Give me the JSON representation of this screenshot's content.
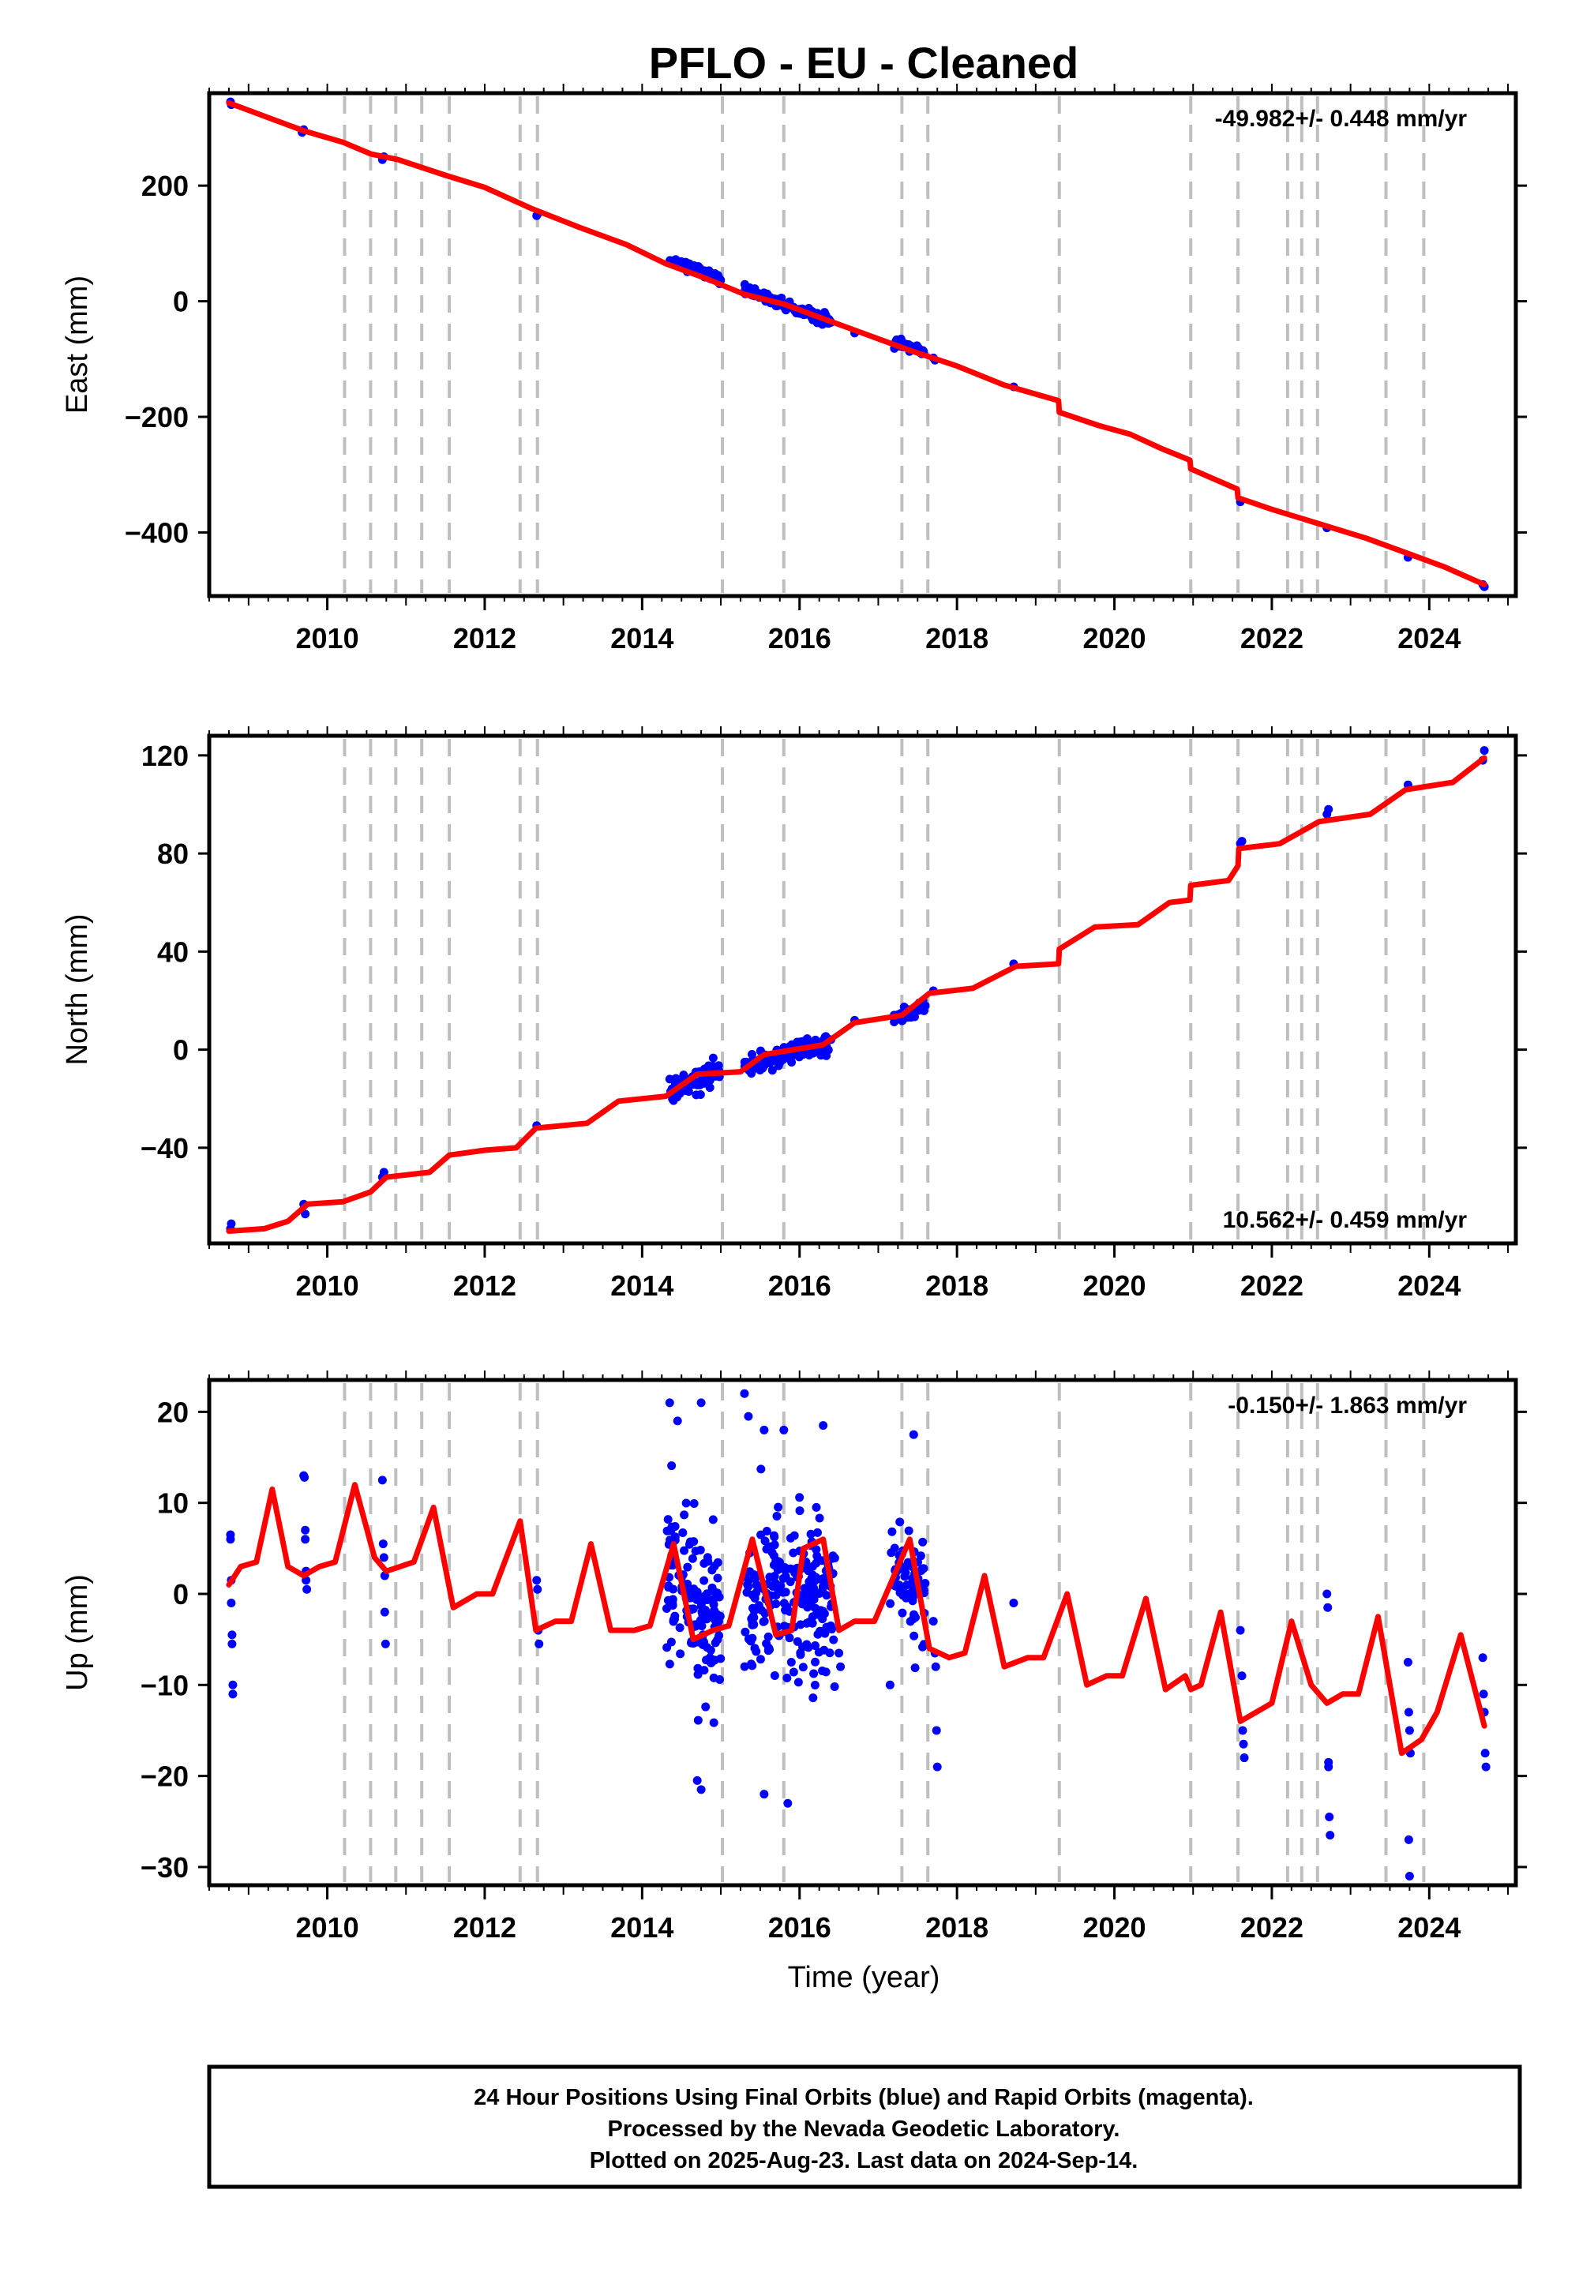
{
  "title": "PFLO  - EU - Cleaned",
  "x_axis_title": "Time (year)",
  "footer": {
    "line1": "24 Hour Positions Using Final Orbits (blue) and Rapid Orbits (magenta).",
    "line2": "Processed by the Nevada Geodetic Laboratory.",
    "line3": "Plotted on 2025-Aug-23. Last data on 2024-Sep-14."
  },
  "colors": {
    "data_points": "#0000ff",
    "model_line": "#ff0000",
    "event_lines": "#bfbfbf",
    "frame": "#000000"
  },
  "chart_data": [
    {
      "type": "scatter",
      "name": "east",
      "ylabel": "East (mm)",
      "xlim": [
        2008.5,
        2025.1
      ],
      "ylim": [
        -510,
        360
      ],
      "x_ticks": [
        2010,
        2012,
        2014,
        2016,
        2018,
        2020,
        2022,
        2024
      ],
      "y_ticks": [
        200,
        0,
        -200,
        -400
      ],
      "y_tick_labels": [
        "200",
        "0",
        "−200",
        "−400"
      ],
      "rate_label": "-49.982+/- 0.448 mm/yr",
      "rate_label_position": "top-right",
      "event_lines": [
        2010.22,
        2010.55,
        2010.87,
        2011.2,
        2011.55,
        2012.45,
        2012.67,
        2015.02,
        2015.8,
        2017.3,
        2017.63,
        2019.3,
        2020.97,
        2021.57,
        2022.2,
        2022.38,
        2022.58,
        2023.45,
        2023.93
      ],
      "model_points": [
        [
          2008.75,
          343
        ],
        [
          2009.3,
          315
        ],
        [
          2009.7,
          295
        ],
        [
          2010.2,
          275
        ],
        [
          2010.55,
          255
        ],
        [
          2010.9,
          245
        ],
        [
          2011.5,
          218
        ],
        [
          2012.0,
          197
        ],
        [
          2012.6,
          160
        ],
        [
          2013.2,
          128
        ],
        [
          2013.8,
          98
        ],
        [
          2014.3,
          65
        ],
        [
          2014.8,
          40
        ],
        [
          2015.3,
          12
        ],
        [
          2015.8,
          -5
        ],
        [
          2016.3,
          -30
        ],
        [
          2016.8,
          -55
        ],
        [
          2017.4,
          -85
        ],
        [
          2018.0,
          -112
        ],
        [
          2018.6,
          -145
        ],
        [
          2019.29,
          -172
        ],
        [
          2019.3,
          -192
        ],
        [
          2019.8,
          -215
        ],
        [
          2020.2,
          -230
        ],
        [
          2020.6,
          -255
        ],
        [
          2020.96,
          -275
        ],
        [
          2020.97,
          -290
        ],
        [
          2021.56,
          -325
        ],
        [
          2021.57,
          -340
        ],
        [
          2022.0,
          -360
        ],
        [
          2022.6,
          -385
        ],
        [
          2023.2,
          -410
        ],
        [
          2023.8,
          -440
        ],
        [
          2024.2,
          -460
        ],
        [
          2024.7,
          -490
        ]
      ],
      "clusters": [
        {
          "x_start": 2014.35,
          "x_end": 2015.0,
          "y_start": 72,
          "y_end": 38,
          "scatter": 7,
          "count": 85
        },
        {
          "x_start": 2015.3,
          "x_end": 2016.4,
          "y_start": 20,
          "y_end": -36,
          "scatter": 8,
          "count": 130
        },
        {
          "x_start": 2017.2,
          "x_end": 2017.6,
          "y_start": -70,
          "y_end": -88,
          "scatter": 6,
          "count": 40
        }
      ],
      "points": [
        [
          2008.77,
          345
        ],
        [
          2008.78,
          340
        ],
        [
          2009.68,
          292
        ],
        [
          2009.7,
          297
        ],
        [
          2010.7,
          245
        ],
        [
          2010.72,
          250
        ],
        [
          2012.66,
          148
        ],
        [
          2012.68,
          152
        ],
        [
          2016.7,
          -55
        ],
        [
          2017.7,
          -98
        ],
        [
          2017.72,
          -102
        ],
        [
          2018.72,
          -148
        ],
        [
          2021.6,
          -347
        ],
        [
          2022.7,
          -392
        ],
        [
          2023.73,
          -443
        ],
        [
          2024.68,
          -490
        ],
        [
          2024.7,
          -494
        ]
      ]
    },
    {
      "type": "scatter",
      "name": "north",
      "ylabel": "North (mm)",
      "xlim": [
        2008.5,
        2025.1
      ],
      "ylim": [
        -79,
        128
      ],
      "x_ticks": [
        2010,
        2012,
        2014,
        2016,
        2018,
        2020,
        2022,
        2024
      ],
      "y_ticks": [
        120,
        80,
        40,
        0,
        -40
      ],
      "y_tick_labels": [
        "120",
        "80",
        "40",
        "0",
        "−40"
      ],
      "rate_label": "10.562+/- 0.459 mm/yr",
      "rate_label_position": "bottom-right",
      "event_lines": [
        2010.22,
        2010.55,
        2010.87,
        2011.2,
        2011.55,
        2012.45,
        2012.67,
        2015.02,
        2015.8,
        2017.3,
        2017.63,
        2019.3,
        2020.97,
        2021.57,
        2022.2,
        2022.38,
        2022.58,
        2023.45,
        2023.93
      ],
      "model_points": [
        [
          2008.75,
          -74
        ],
        [
          2009.2,
          -73
        ],
        [
          2009.5,
          -70
        ],
        [
          2009.75,
          -63
        ],
        [
          2010.2,
          -62
        ],
        [
          2010.55,
          -58
        ],
        [
          2010.75,
          -52
        ],
        [
          2011.3,
          -50
        ],
        [
          2011.55,
          -43
        ],
        [
          2012.0,
          -41
        ],
        [
          2012.4,
          -40
        ],
        [
          2012.65,
          -32
        ],
        [
          2013.3,
          -30
        ],
        [
          2013.7,
          -21
        ],
        [
          2014.3,
          -19
        ],
        [
          2014.7,
          -10
        ],
        [
          2015.25,
          -9
        ],
        [
          2015.55,
          -2
        ],
        [
          2016.3,
          2
        ],
        [
          2016.7,
          11
        ],
        [
          2017.3,
          14
        ],
        [
          2017.65,
          23
        ],
        [
          2018.2,
          25
        ],
        [
          2018.75,
          34
        ],
        [
          2019.29,
          35
        ],
        [
          2019.3,
          41
        ],
        [
          2019.75,
          50
        ],
        [
          2020.3,
          51
        ],
        [
          2020.7,
          60
        ],
        [
          2020.96,
          61
        ],
        [
          2020.97,
          67
        ],
        [
          2021.45,
          69
        ],
        [
          2021.57,
          75
        ],
        [
          2021.58,
          82
        ],
        [
          2022.1,
          84
        ],
        [
          2022.6,
          93
        ],
        [
          2023.25,
          96
        ],
        [
          2023.7,
          106
        ],
        [
          2024.3,
          109
        ],
        [
          2024.7,
          119
        ]
      ],
      "clusters": [
        {
          "x_start": 2014.35,
          "x_end": 2015.0,
          "y_start": -18,
          "y_end": -8,
          "scatter": 4,
          "count": 85
        },
        {
          "x_start": 2015.3,
          "x_end": 2016.4,
          "y_start": -7,
          "y_end": 3,
          "scatter": 3.5,
          "count": 130
        },
        {
          "x_start": 2017.2,
          "x_end": 2017.6,
          "y_start": 12,
          "y_end": 18,
          "scatter": 3,
          "count": 40
        }
      ],
      "points": [
        [
          2008.77,
          -73
        ],
        [
          2008.78,
          -71
        ],
        [
          2009.7,
          -63
        ],
        [
          2009.72,
          -67
        ],
        [
          2010.7,
          -52
        ],
        [
          2010.72,
          -50
        ],
        [
          2012.66,
          -31
        ],
        [
          2016.7,
          12
        ],
        [
          2017.7,
          24
        ],
        [
          2018.72,
          35
        ],
        [
          2021.6,
          84
        ],
        [
          2021.62,
          85
        ],
        [
          2022.7,
          96
        ],
        [
          2022.72,
          98
        ],
        [
          2023.73,
          108
        ],
        [
          2024.68,
          118
        ],
        [
          2024.7,
          122
        ]
      ]
    },
    {
      "type": "scatter",
      "name": "up",
      "ylabel": "Up (mm)",
      "xlabel": "Time (year)",
      "xlim": [
        2008.5,
        2025.1
      ],
      "ylim": [
        -32,
        23.5
      ],
      "x_ticks": [
        2010,
        2012,
        2014,
        2016,
        2018,
        2020,
        2022,
        2024
      ],
      "y_ticks": [
        20,
        10,
        0,
        -10,
        -20,
        -30
      ],
      "y_tick_labels": [
        "20",
        "10",
        "0",
        "−10",
        "−20",
        "−30"
      ],
      "rate_label": "-0.150+/- 1.863 mm/yr",
      "rate_label_position": "top-right",
      "event_lines": [
        2010.22,
        2010.55,
        2010.87,
        2011.2,
        2011.55,
        2012.45,
        2012.67,
        2015.02,
        2015.8,
        2017.3,
        2017.63,
        2019.3,
        2020.97,
        2021.57,
        2022.2,
        2022.38,
        2022.58,
        2023.45,
        2023.93
      ],
      "model_points": [
        [
          2008.75,
          1
        ],
        [
          2008.9,
          3
        ],
        [
          2009.1,
          3.5
        ],
        [
          2009.3,
          11.5
        ],
        [
          2009.5,
          3
        ],
        [
          2009.7,
          2
        ],
        [
          2009.9,
          3
        ],
        [
          2010.1,
          3.5
        ],
        [
          2010.35,
          12
        ],
        [
          2010.6,
          4
        ],
        [
          2010.75,
          2.5
        ],
        [
          2011.1,
          3.5
        ],
        [
          2011.35,
          9.5
        ],
        [
          2011.6,
          -1.5
        ],
        [
          2011.9,
          0
        ],
        [
          2012.1,
          0
        ],
        [
          2012.45,
          8
        ],
        [
          2012.65,
          -4
        ],
        [
          2012.9,
          -3
        ],
        [
          2013.1,
          -3
        ],
        [
          2013.35,
          5.5
        ],
        [
          2013.6,
          -4
        ],
        [
          2013.9,
          -4
        ],
        [
          2014.1,
          -3.5
        ],
        [
          2014.4,
          5.5
        ],
        [
          2014.65,
          -5
        ],
        [
          2014.9,
          -4
        ],
        [
          2015.1,
          -3.5
        ],
        [
          2015.4,
          6
        ],
        [
          2015.7,
          -4.5
        ],
        [
          2015.9,
          -4
        ],
        [
          2016.05,
          5
        ],
        [
          2016.3,
          6
        ],
        [
          2016.5,
          -4
        ],
        [
          2016.7,
          -3
        ],
        [
          2016.95,
          -3
        ],
        [
          2017.4,
          6
        ],
        [
          2017.65,
          -6
        ],
        [
          2017.9,
          -7
        ],
        [
          2018.1,
          -6.5
        ],
        [
          2018.35,
          2
        ],
        [
          2018.6,
          -8
        ],
        [
          2018.9,
          -7
        ],
        [
          2019.1,
          -7
        ],
        [
          2019.4,
          0
        ],
        [
          2019.65,
          -10
        ],
        [
          2019.9,
          -9
        ],
        [
          2020.1,
          -9
        ],
        [
          2020.4,
          -0.5
        ],
        [
          2020.65,
          -10.5
        ],
        [
          2020.9,
          -9
        ],
        [
          2020.97,
          -10.5
        ],
        [
          2021.1,
          -10
        ],
        [
          2021.35,
          -2
        ],
        [
          2021.6,
          -14
        ],
        [
          2021.8,
          -13
        ],
        [
          2022.0,
          -12
        ],
        [
          2022.25,
          -3
        ],
        [
          2022.5,
          -10
        ],
        [
          2022.7,
          -12
        ],
        [
          2022.9,
          -11
        ],
        [
          2023.1,
          -11
        ],
        [
          2023.35,
          -2.5
        ],
        [
          2023.65,
          -17.5
        ],
        [
          2023.9,
          -16
        ],
        [
          2024.1,
          -13
        ],
        [
          2024.4,
          -4.5
        ],
        [
          2024.7,
          -14.5
        ]
      ],
      "clusters": [
        {
          "x_start": 2014.3,
          "x_end": 2015.0,
          "y_start": 1,
          "y_end": -3,
          "scatter": 8,
          "count": 140
        },
        {
          "x_start": 2015.3,
          "x_end": 2016.45,
          "y_start": 0,
          "y_end": -1,
          "scatter": 8,
          "count": 220
        },
        {
          "x_start": 2017.15,
          "x_end": 2017.6,
          "y_start": 2,
          "y_end": 1,
          "scatter": 6,
          "count": 60
        }
      ],
      "points": [
        [
          2008.77,
          6.5
        ],
        [
          2008.77,
          6
        ],
        [
          2008.78,
          1.5
        ],
        [
          2008.78,
          -1
        ],
        [
          2008.79,
          -4.5
        ],
        [
          2008.79,
          -5.5
        ],
        [
          2008.8,
          -10
        ],
        [
          2008.8,
          -11
        ],
        [
          2009.7,
          13
        ],
        [
          2009.71,
          12.8
        ],
        [
          2009.72,
          7
        ],
        [
          2009.72,
          6
        ],
        [
          2009.73,
          2.5
        ],
        [
          2009.73,
          1.5
        ],
        [
          2009.74,
          0.5
        ],
        [
          2010.7,
          12.5
        ],
        [
          2010.71,
          5.5
        ],
        [
          2010.72,
          4
        ],
        [
          2010.73,
          2
        ],
        [
          2010.73,
          -2
        ],
        [
          2010.74,
          -5.5
        ],
        [
          2012.66,
          1.5
        ],
        [
          2012.67,
          0.5
        ],
        [
          2012.68,
          -4
        ],
        [
          2012.69,
          -5.5
        ],
        [
          2014.35,
          21
        ],
        [
          2014.45,
          19
        ],
        [
          2014.75,
          21
        ],
        [
          2015.3,
          22
        ],
        [
          2015.35,
          19.5
        ],
        [
          2015.55,
          18
        ],
        [
          2015.8,
          18
        ],
        [
          2016.3,
          18.5
        ],
        [
          2017.45,
          17.5
        ],
        [
          2014.7,
          -20.5
        ],
        [
          2014.75,
          -21.5
        ],
        [
          2015.55,
          -22
        ],
        [
          2015.85,
          -23
        ],
        [
          2016.5,
          -6.5
        ],
        [
          2016.52,
          -8
        ],
        [
          2017.15,
          -10
        ],
        [
          2017.7,
          -3
        ],
        [
          2017.72,
          -6.5
        ],
        [
          2017.73,
          -8
        ],
        [
          2017.74,
          -15
        ],
        [
          2017.75,
          -19
        ],
        [
          2018.72,
          -1
        ],
        [
          2021.6,
          -4
        ],
        [
          2021.62,
          -9
        ],
        [
          2021.63,
          -15
        ],
        [
          2021.64,
          -16.5
        ],
        [
          2021.65,
          -18
        ],
        [
          2022.7,
          0
        ],
        [
          2022.71,
          -1.5
        ],
        [
          2022.72,
          -19
        ],
        [
          2022.73,
          -24.5
        ],
        [
          2022.74,
          -26.5
        ],
        [
          2022.72,
          -18.5
        ],
        [
          2023.73,
          -7.5
        ],
        [
          2023.74,
          -13
        ],
        [
          2023.75,
          -15
        ],
        [
          2023.76,
          -17.5
        ],
        [
          2023.74,
          -27
        ],
        [
          2023.75,
          -31
        ],
        [
          2024.68,
          -7
        ],
        [
          2024.69,
          -11
        ],
        [
          2024.7,
          -13
        ],
        [
          2024.71,
          -17.5
        ],
        [
          2024.72,
          -19
        ]
      ]
    }
  ]
}
